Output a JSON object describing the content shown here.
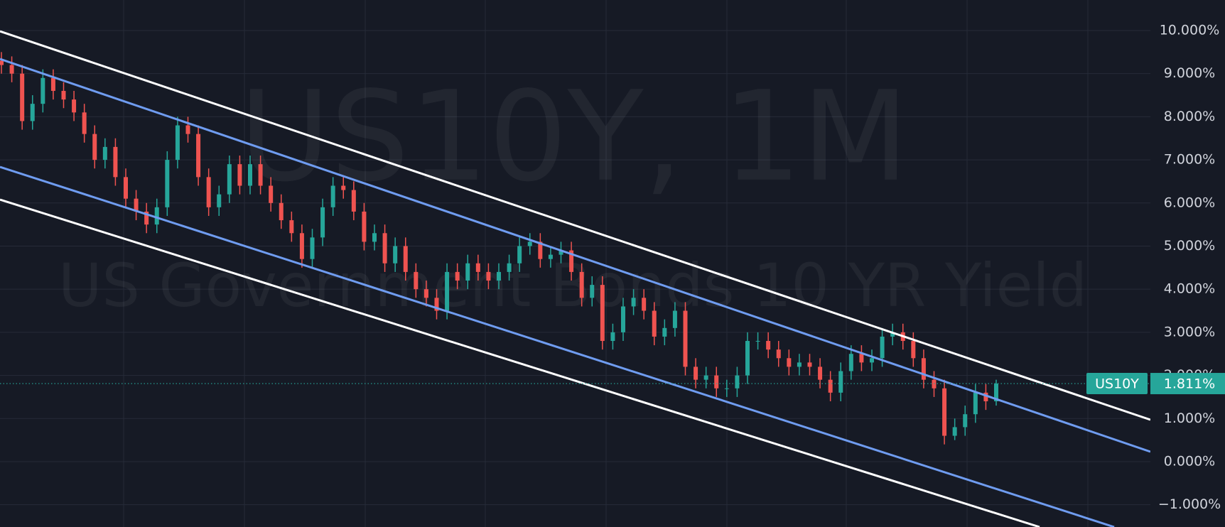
{
  "chart_data": {
    "type": "candlestick",
    "title": "US10Y, 1M",
    "subtitle": "US Government Bonds 10 YR Yield",
    "symbol": "US10Y",
    "up_color": "#26a69a",
    "down_color": "#ef5350",
    "open": [
      9.3,
      9.2,
      9.0,
      7.9,
      8.3,
      8.9,
      8.6,
      8.4,
      8.1,
      7.6,
      7.0,
      7.3,
      6.6,
      6.1,
      5.8,
      5.5,
      5.9,
      7.0,
      7.8,
      7.6,
      6.6,
      5.9,
      6.2,
      6.9,
      6.4,
      6.9,
      6.4,
      6.0,
      5.6,
      5.3,
      4.7,
      5.2,
      5.9,
      6.4,
      6.3,
      5.8,
      5.1,
      5.3,
      4.6,
      5.0,
      4.4,
      4.0,
      3.8,
      3.5,
      4.4,
      4.2,
      4.6,
      4.4,
      4.2,
      4.4,
      4.6,
      5.0,
      5.1,
      4.7,
      4.8,
      4.9,
      4.4,
      3.8,
      4.1,
      2.8,
      3.0,
      3.6,
      3.8,
      3.5,
      2.9,
      3.1,
      3.5,
      2.2,
      1.9,
      2.0,
      1.7,
      1.7,
      2.0,
      2.8,
      2.8,
      2.6,
      2.4,
      2.2,
      2.3,
      2.2,
      1.9,
      1.6,
      2.1,
      2.5,
      2.3,
      2.4,
      2.9,
      3.0,
      2.8,
      2.4,
      1.9,
      1.7,
      0.6,
      0.8,
      1.1,
      1.6,
      1.4
    ],
    "high": [
      9.5,
      9.4,
      9.2,
      8.5,
      9.1,
      9.1,
      8.8,
      8.6,
      8.3,
      7.8,
      7.5,
      7.5,
      6.8,
      6.3,
      6.0,
      6.1,
      7.2,
      8.0,
      8.0,
      7.8,
      6.8,
      6.4,
      7.1,
      7.1,
      7.1,
      7.1,
      6.6,
      6.2,
      5.8,
      5.5,
      5.4,
      6.1,
      6.6,
      6.6,
      6.5,
      6.0,
      5.5,
      5.5,
      5.2,
      5.2,
      4.6,
      4.2,
      4.0,
      4.6,
      4.6,
      4.8,
      4.8,
      4.6,
      4.6,
      4.8,
      5.2,
      5.3,
      5.3,
      5.0,
      5.1,
      5.1,
      4.6,
      4.3,
      4.3,
      3.2,
      3.8,
      4.0,
      4.0,
      3.7,
      3.3,
      3.7,
      3.7,
      2.4,
      2.2,
      2.2,
      1.9,
      2.2,
      3.0,
      3.0,
      3.0,
      2.8,
      2.6,
      2.5,
      2.5,
      2.4,
      2.1,
      2.3,
      2.7,
      2.7,
      2.6,
      3.1,
      3.2,
      3.2,
      3.0,
      2.6,
      2.1,
      1.9,
      1.0,
      1.3,
      1.8,
      1.8,
      1.9
    ],
    "low": [
      9.0,
      8.8,
      7.7,
      7.7,
      8.1,
      8.4,
      8.2,
      7.9,
      7.4,
      6.8,
      6.8,
      6.4,
      5.9,
      5.6,
      5.3,
      5.3,
      5.7,
      6.8,
      7.4,
      6.4,
      5.7,
      5.7,
      6.0,
      6.2,
      6.2,
      6.2,
      5.8,
      5.4,
      5.1,
      4.5,
      4.5,
      5.0,
      5.7,
      6.1,
      5.6,
      4.9,
      4.9,
      4.4,
      4.4,
      4.2,
      3.8,
      3.6,
      3.3,
      3.3,
      4.0,
      4.0,
      4.2,
      4.0,
      4.0,
      4.2,
      4.4,
      4.8,
      4.5,
      4.5,
      4.6,
      4.2,
      3.6,
      3.6,
      2.6,
      2.6,
      2.8,
      3.4,
      3.3,
      2.7,
      2.7,
      2.9,
      2.0,
      1.7,
      1.7,
      1.5,
      1.5,
      1.5,
      1.8,
      2.6,
      2.4,
      2.2,
      2.0,
      2.0,
      2.0,
      1.7,
      1.4,
      1.4,
      1.9,
      2.1,
      2.1,
      2.2,
      2.7,
      2.6,
      2.2,
      1.7,
      1.5,
      0.4,
      0.5,
      0.6,
      0.9,
      1.2,
      1.3
    ],
    "close": [
      9.2,
      9.0,
      7.9,
      8.3,
      8.9,
      8.6,
      8.4,
      8.1,
      7.6,
      7.0,
      7.3,
      6.6,
      6.1,
      5.8,
      5.5,
      5.9,
      7.0,
      7.8,
      7.6,
      6.6,
      5.9,
      6.2,
      6.9,
      6.4,
      6.9,
      6.4,
      6.0,
      5.6,
      5.3,
      4.7,
      5.2,
      5.9,
      6.4,
      6.3,
      5.8,
      5.1,
      5.3,
      4.6,
      5.0,
      4.4,
      4.0,
      3.8,
      3.5,
      4.4,
      4.2,
      4.6,
      4.4,
      4.2,
      4.4,
      4.6,
      5.0,
      5.1,
      4.7,
      4.8,
      4.9,
      4.4,
      3.8,
      4.1,
      2.8,
      3.0,
      3.6,
      3.8,
      3.5,
      2.9,
      3.1,
      3.5,
      2.2,
      1.9,
      2.0,
      1.7,
      1.7,
      2.0,
      2.8,
      2.8,
      2.6,
      2.4,
      2.2,
      2.3,
      2.2,
      1.9,
      1.6,
      2.1,
      2.5,
      2.3,
      2.4,
      2.9,
      3.0,
      2.8,
      2.4,
      1.9,
      1.7,
      0.6,
      0.8,
      1.1,
      1.6,
      1.4,
      1.811
    ],
    "ylim": [
      -1.516,
      10.708
    ],
    "yticks": [
      {
        "value": -1,
        "label": "−1.000%"
      },
      {
        "value": 0,
        "label": "0.000%"
      },
      {
        "value": 1,
        "label": "1.000%"
      },
      {
        "value": 2,
        "label": "2.000%"
      },
      {
        "value": 3,
        "label": "3.000%"
      },
      {
        "value": 4,
        "label": "4.000%"
      },
      {
        "value": 5,
        "label": "5.000%"
      },
      {
        "value": 6,
        "label": "6.000%"
      },
      {
        "value": 7,
        "label": "7.000%"
      },
      {
        "value": 8,
        "label": "8.000%"
      },
      {
        "value": 9,
        "label": "9.000%"
      },
      {
        "value": 10,
        "label": "10.000%"
      }
    ],
    "last_price": {
      "value": 1.811,
      "label": "1.811%"
    },
    "last_color": "#26a69a",
    "grid": true
  }
}
